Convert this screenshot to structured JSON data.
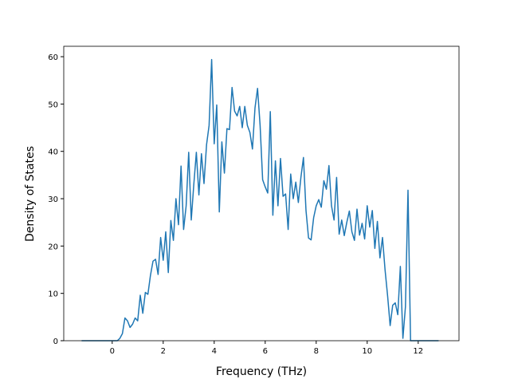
{
  "chart_data": {
    "type": "line",
    "xlabel": "Frequency (THz)",
    "ylabel": "Density of States",
    "x": [
      -1.2,
      -1.1,
      -1.0,
      -0.9,
      -0.8,
      -0.7,
      -0.6,
      -0.5,
      -0.4,
      -0.3,
      -0.2,
      -0.1,
      0.0,
      0.1,
      0.2,
      0.3,
      0.4,
      0.5,
      0.6,
      0.7,
      0.8,
      0.9,
      1.0,
      1.1,
      1.2,
      1.3,
      1.4,
      1.5,
      1.6,
      1.7,
      1.8,
      1.9,
      2.0,
      2.1,
      2.2,
      2.3,
      2.4,
      2.5,
      2.6,
      2.7,
      2.8,
      2.9,
      3.0,
      3.1,
      3.2,
      3.3,
      3.4,
      3.5,
      3.6,
      3.7,
      3.8,
      3.9,
      4.0,
      4.1,
      4.2,
      4.3,
      4.4,
      4.5,
      4.6,
      4.7,
      4.8,
      4.9,
      5.0,
      5.1,
      5.2,
      5.3,
      5.4,
      5.5,
      5.6,
      5.7,
      5.8,
      5.9,
      6.0,
      6.1,
      6.2,
      6.3,
      6.4,
      6.5,
      6.6,
      6.7,
      6.8,
      6.9,
      7.0,
      7.1,
      7.2,
      7.3,
      7.4,
      7.5,
      7.6,
      7.7,
      7.8,
      7.9,
      8.0,
      8.1,
      8.2,
      8.3,
      8.4,
      8.5,
      8.6,
      8.7,
      8.8,
      8.9,
      9.0,
      9.1,
      9.2,
      9.3,
      9.4,
      9.5,
      9.6,
      9.7,
      9.8,
      9.9,
      10.0,
      10.1,
      10.2,
      10.3,
      10.4,
      10.5,
      10.6,
      10.7,
      10.8,
      10.9,
      11.0,
      11.1,
      11.2,
      11.3,
      11.4,
      11.5,
      11.6,
      11.7,
      11.8,
      11.9,
      12.0,
      12.1,
      12.2,
      12.3,
      12.4,
      12.5,
      12.6,
      12.7,
      12.8
    ],
    "series": [
      {
        "color": "#1f77b4",
        "values": [
          0,
          0,
          0,
          0,
          0,
          0,
          0,
          0,
          0,
          0,
          0,
          0,
          0,
          0,
          0,
          0.5,
          1.5,
          4.8,
          4.2,
          2.8,
          3.5,
          4.8,
          4.2,
          9.6,
          5.8,
          10.2,
          9.8,
          13.8,
          16.8,
          17.2,
          14.0,
          21.8,
          17.0,
          23.0,
          14.4,
          25.4,
          21.2,
          30.0,
          24.5,
          36.9,
          23.5,
          28.5,
          39.8,
          25.5,
          33.0,
          39.8,
          30.8,
          39.5,
          33.2,
          41.4,
          45.5,
          59.4,
          41.6,
          49.8,
          27.2,
          42.0,
          35.4,
          44.8,
          44.6,
          53.5,
          48.5,
          47.5,
          49.5,
          45.0,
          49.5,
          45.5,
          44.0,
          40.5,
          49.2,
          53.3,
          45.5,
          34.0,
          32.5,
          31.2,
          48.4,
          26.5,
          38.0,
          28.5,
          38.5,
          30.5,
          31.0,
          23.5,
          35.2,
          30.0,
          33.5,
          29.2,
          34.5,
          38.7,
          27.5,
          21.7,
          21.3,
          26.0,
          28.5,
          29.8,
          28.2,
          33.8,
          32.0,
          37.0,
          28.5,
          25.5,
          34.5,
          22.5,
          25.5,
          22.2,
          25.0,
          27.4,
          23.0,
          21.2,
          27.8,
          22.3,
          24.8,
          21.5,
          28.5,
          24.0,
          27.5,
          19.5,
          25.2,
          17.5,
          21.8,
          15.0,
          9.5,
          3.2,
          7.5,
          8.0,
          5.5,
          15.7,
          0.5,
          7.2,
          31.8,
          0,
          0,
          0,
          0,
          0,
          0,
          0,
          0,
          0,
          0,
          0,
          0
        ]
      }
    ],
    "xlim": [
      -1.9,
      13.6
    ],
    "ylim": [
      0,
      62.2
    ],
    "xticks": [
      0,
      2,
      4,
      6,
      8,
      10,
      12
    ],
    "yticks": [
      0,
      10,
      20,
      30,
      40,
      50,
      60
    ]
  }
}
